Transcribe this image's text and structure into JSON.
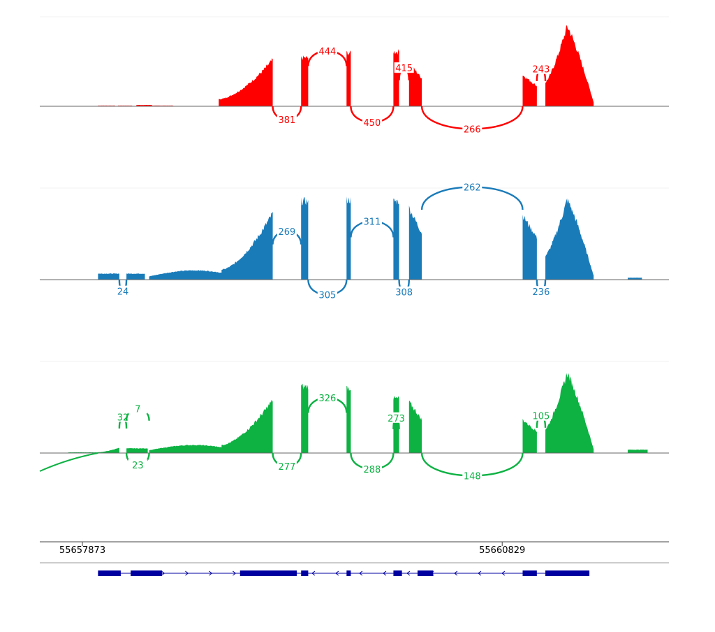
{
  "chart_data": {
    "type": "sashimi",
    "x_axis": {
      "ticks": [
        {
          "value": 55657873,
          "label": "55657873"
        },
        {
          "value": 55660829,
          "label": "55660829"
        }
      ],
      "xlim": [
        55657573,
        55662003
      ]
    },
    "tracks": [
      {
        "color": "#ff0000",
        "coverage": [
          {
            "start": 55657983,
            "end": 55658103,
            "peak": 1,
            "shape": "flat"
          },
          {
            "start": 55658123,
            "end": 55658223,
            "peak": 1,
            "shape": "flat"
          },
          {
            "start": 55658253,
            "end": 55658363,
            "peak": 2,
            "shape": "flat"
          },
          {
            "start": 55658363,
            "end": 55658513,
            "peak": 1,
            "shape": "flat"
          },
          {
            "start": 55658833,
            "end": 55659213,
            "peak": 70,
            "shape": "rise"
          },
          {
            "start": 55659413,
            "end": 55659463,
            "peak": 73,
            "shape": "flat"
          },
          {
            "start": 55659733,
            "end": 55659763,
            "peak": 80,
            "shape": "flat"
          },
          {
            "start": 55660063,
            "end": 55660103,
            "peak": 82,
            "shape": "flat"
          },
          {
            "start": 55660173,
            "end": 55660263,
            "peak": 65,
            "shape": "fall"
          },
          {
            "start": 55660973,
            "end": 55661073,
            "peak": 47,
            "shape": "fall"
          },
          {
            "start": 55661133,
            "end": 55661473,
            "peak": 120,
            "shape": "peak"
          }
        ],
        "junctions": [
          {
            "from": 55659213,
            "to": 55659413,
            "count": "381",
            "side": "below"
          },
          {
            "from": 55659463,
            "to": 55659733,
            "count": "444",
            "side": "above"
          },
          {
            "from": 55659763,
            "to": 55660063,
            "count": "450",
            "side": "below"
          },
          {
            "from": 55660103,
            "to": 55660173,
            "count": "415",
            "side": "above"
          },
          {
            "from": 55660263,
            "to": 55660973,
            "count": "266",
            "side": "below"
          },
          {
            "from": 55661073,
            "to": 55661133,
            "count": "243",
            "side": "above"
          }
        ]
      },
      {
        "color": "#1a7bb9",
        "coverage": [
          {
            "start": 55657983,
            "end": 55658133,
            "peak": 9,
            "shape": "flat"
          },
          {
            "start": 55658183,
            "end": 55658313,
            "peak": 9,
            "shape": "flat"
          },
          {
            "start": 55658343,
            "end": 55658983,
            "peak": 14,
            "shape": "hump"
          },
          {
            "start": 55658853,
            "end": 55659213,
            "peak": 100,
            "shape": "rise"
          },
          {
            "start": 55659413,
            "end": 55659463,
            "peak": 118,
            "shape": "flat"
          },
          {
            "start": 55659733,
            "end": 55659763,
            "peak": 120,
            "shape": "flat"
          },
          {
            "start": 55660063,
            "end": 55660103,
            "peak": 118,
            "shape": "flat"
          },
          {
            "start": 55660173,
            "end": 55660263,
            "peak": 108,
            "shape": "fall"
          },
          {
            "start": 55660973,
            "end": 55661073,
            "peak": 97,
            "shape": "fall"
          },
          {
            "start": 55661133,
            "end": 55661473,
            "peak": 120,
            "shape": "peak"
          },
          {
            "start": 55661713,
            "end": 55661813,
            "peak": 3,
            "shape": "flat"
          }
        ],
        "junctions": [
          {
            "from": 55658133,
            "to": 55658183,
            "count": "24",
            "side": "below"
          },
          {
            "from": 55659213,
            "to": 55659413,
            "count": "269",
            "side": "above"
          },
          {
            "from": 55659463,
            "to": 55659733,
            "count": "305",
            "side": "below"
          },
          {
            "from": 55659763,
            "to": 55660063,
            "count": "311",
            "side": "above"
          },
          {
            "from": 55660103,
            "to": 55660173,
            "count": "308",
            "side": "below"
          },
          {
            "from": 55660263,
            "to": 55660973,
            "count": "262",
            "side": "above"
          },
          {
            "from": 55661073,
            "to": 55661133,
            "count": "236",
            "side": "below"
          }
        ]
      },
      {
        "color": "#0db243",
        "coverage": [
          {
            "start": 55657773,
            "end": 55657983,
            "peak": 1,
            "shape": "flat"
          },
          {
            "start": 55657983,
            "end": 55658133,
            "peak": 8,
            "shape": "rise"
          },
          {
            "start": 55658183,
            "end": 55658333,
            "peak": 7,
            "shape": "flat"
          },
          {
            "start": 55658343,
            "end": 55658973,
            "peak": 12,
            "shape": "hump"
          },
          {
            "start": 55658853,
            "end": 55659213,
            "peak": 80,
            "shape": "rise"
          },
          {
            "start": 55659413,
            "end": 55659463,
            "peak": 100,
            "shape": "flat"
          },
          {
            "start": 55659733,
            "end": 55659763,
            "peak": 98,
            "shape": "flat"
          },
          {
            "start": 55660063,
            "end": 55660103,
            "peak": 82,
            "shape": "flat"
          },
          {
            "start": 55660173,
            "end": 55660263,
            "peak": 77,
            "shape": "fall"
          },
          {
            "start": 55660973,
            "end": 55661073,
            "peak": 50,
            "shape": "fall"
          },
          {
            "start": 55661133,
            "end": 55661473,
            "peak": 120,
            "shape": "peak"
          },
          {
            "start": 55661713,
            "end": 55661853,
            "peak": 5,
            "shape": "flat"
          }
        ],
        "junctions": [
          {
            "from": 55658133,
            "to": 55658183,
            "count": "32",
            "side": "above"
          },
          {
            "from": 55658183,
            "to": 55658343,
            "count": "7",
            "side": "above"
          },
          {
            "from": 55658183,
            "to": 55658343,
            "count": "23",
            "side": "below"
          },
          {
            "from": 55659213,
            "to": 55659413,
            "count": "277",
            "side": "below"
          },
          {
            "from": 55659463,
            "to": 55659733,
            "count": "326",
            "side": "above"
          },
          {
            "from": 55659763,
            "to": 55660063,
            "count": "288",
            "side": "below"
          },
          {
            "from": 55660063,
            "to": 55660103,
            "count": "273",
            "side": "above"
          },
          {
            "from": 55660263,
            "to": 55660973,
            "count": "148",
            "side": "below"
          },
          {
            "from": 55661073,
            "to": 55661133,
            "count": "105",
            "side": "above"
          }
        ]
      }
    ],
    "gene_models": [
      {
        "color": "#0000a0",
        "strand": "+",
        "exons": [
          [
            55657983,
            55658143
          ],
          [
            55658213,
            55658433
          ],
          [
            55658983,
            55659343
          ]
        ],
        "line": [
          55657983,
          55659343
        ]
      },
      {
        "color": "#0000a0",
        "strand": "-",
        "exons": [
          [
            55659043,
            55659133
          ],
          [
            55659343,
            55659383
          ],
          [
            55659413,
            55659463
          ],
          [
            55659733,
            55659763
          ],
          [
            55660063,
            55660123
          ],
          [
            55660233,
            55660343
          ],
          [
            55660973,
            55661073
          ],
          [
            55661133,
            55661443
          ]
        ],
        "line": [
          55659043,
          55661443
        ]
      }
    ]
  }
}
